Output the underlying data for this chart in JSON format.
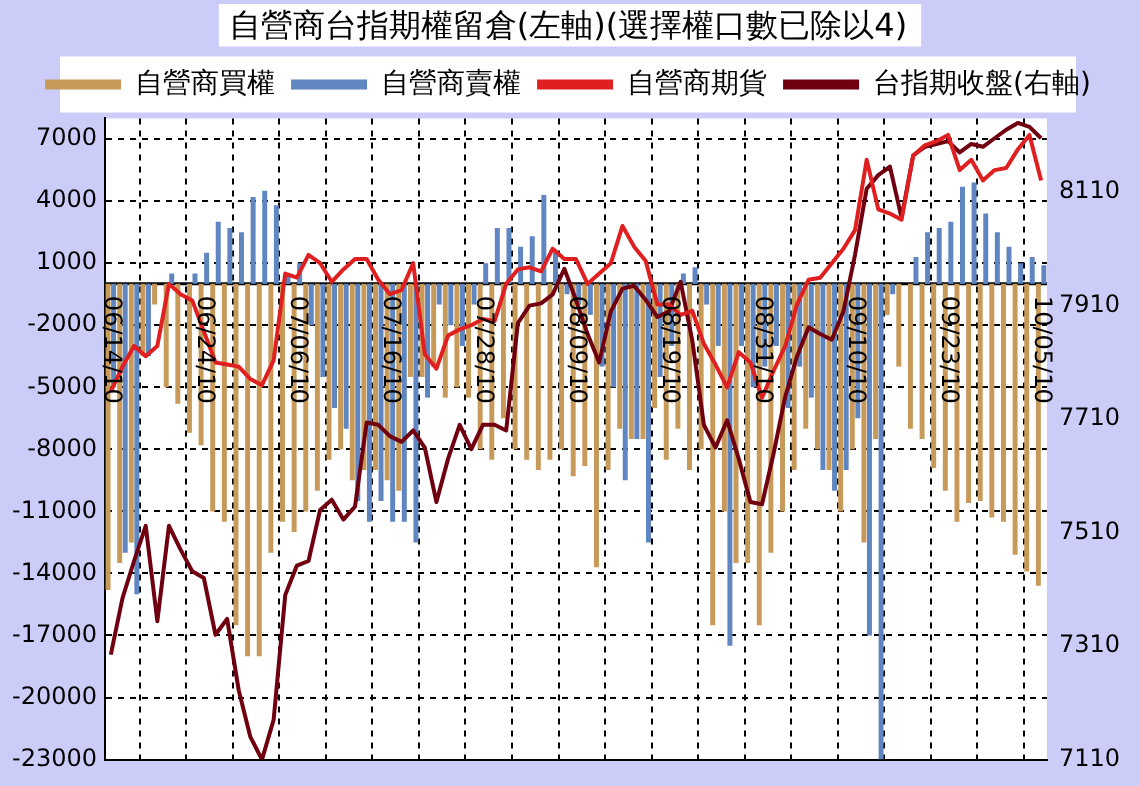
{
  "chart_data": {
    "type": "bar",
    "title": "自營商台指期權留倉(左軸)(選擇權口數已除以4)",
    "categories": [
      "06/14/10",
      null,
      null,
      null,
      null,
      null,
      null,
      null,
      "06/24/10",
      null,
      null,
      null,
      null,
      null,
      null,
      null,
      "07/06/10",
      null,
      null,
      null,
      null,
      null,
      null,
      null,
      "07/16/10",
      null,
      null,
      null,
      null,
      null,
      null,
      null,
      "07/28/10",
      null,
      null,
      null,
      null,
      null,
      null,
      null,
      "08/09/10",
      null,
      null,
      null,
      null,
      null,
      null,
      null,
      "08/19/10",
      null,
      null,
      null,
      null,
      null,
      null,
      null,
      "08/31/10",
      null,
      null,
      null,
      null,
      null,
      null,
      null,
      "09/10/10",
      null,
      null,
      null,
      null,
      null,
      null,
      null,
      "09/23/10",
      null,
      null,
      null,
      null,
      null,
      null,
      null,
      "10/05/10"
    ],
    "series": [
      {
        "name": "自營商買權",
        "color": "#c89a5a",
        "values": [
          -14800,
          -13500,
          -12500,
          -3500,
          -1000,
          -5000,
          -5800,
          -7200,
          -7800,
          -11000,
          -11500,
          -16500,
          -18000,
          -18000,
          -13000,
          -11500,
          -12000,
          -11000,
          -10000,
          -8500,
          -8000,
          -9500,
          -9000,
          -9000,
          -9500,
          -10000,
          -4500,
          -4500,
          -4000,
          -5500,
          -5000,
          -5500,
          -8000,
          -8500,
          -6500,
          -8000,
          -8500,
          -9000,
          -8500,
          -8000,
          -9300,
          -8800,
          -13700,
          -9000,
          -7000,
          -7500,
          -7500,
          -6000,
          -8500,
          -7000,
          -9000,
          -8000,
          -16500,
          -11000,
          -13500,
          -13500,
          -16500,
          -13000,
          -11000,
          -9000,
          -7000,
          -8000,
          -9000,
          -11000,
          -8000,
          -12500,
          -7500,
          -1500,
          -4000,
          -7000,
          -7500,
          -8900,
          -10000,
          -11500,
          -10600,
          -10500,
          -11300,
          -11500,
          -13100,
          -13900,
          -14600
        ]
      },
      {
        "name": "自營商賣權",
        "color": "#5f86c0",
        "values": [
          -5000,
          -13000,
          -15000,
          -3500,
          0,
          500,
          0,
          500,
          1500,
          3000,
          2700,
          2500,
          4200,
          4500,
          3800,
          500,
          1000,
          -2000,
          -4500,
          -6000,
          -7000,
          -10500,
          -11500,
          -10500,
          -11500,
          -11500,
          -12500,
          -5500,
          -1000,
          -2000,
          -3000,
          -1000,
          1000,
          2700,
          2700,
          1800,
          2300,
          4300,
          1500,
          -500,
          -1000,
          -1500,
          -4000,
          -5000,
          -9500,
          -7500,
          -12500,
          -4500,
          -3000,
          500,
          800,
          -1000,
          -3000,
          -17500,
          -3000,
          -5000,
          -4000,
          -3000,
          -6000,
          -4000,
          -5500,
          -9000,
          -10000,
          -9000,
          -6500,
          -17000,
          -23000,
          -500,
          0,
          1300,
          2500,
          2700,
          3000,
          4700,
          4900,
          3400,
          2500,
          1800,
          1000,
          1300,
          900
        ]
      },
      {
        "name": "自營商期貨",
        "type": "line",
        "color": "#e02020",
        "values": [
          -5200,
          -4000,
          -3000,
          -3500,
          -3000,
          0,
          -500,
          -800,
          -2300,
          -3800,
          -3900,
          -4000,
          -4600,
          -4900,
          -3700,
          500,
          300,
          1400,
          1000,
          100,
          700,
          1200,
          1200,
          200,
          -500,
          -300,
          1000,
          -3400,
          -4100,
          -2500,
          -2200,
          -2000,
          -1700,
          -1800,
          0,
          700,
          800,
          600,
          1700,
          1200,
          1200,
          0,
          500,
          1000,
          2800,
          1800,
          1100,
          -1000,
          -1000,
          -1500,
          -1300,
          -2900,
          -3900,
          -5000,
          -3300,
          -3800,
          -5500,
          -4200,
          -3000,
          -1000,
          200,
          300,
          1000,
          1700,
          2600,
          6000,
          3600,
          3400,
          3100,
          6200,
          6700,
          6900,
          7200,
          5500,
          6000,
          5000,
          5500,
          5600,
          6500,
          7200,
          5000
        ]
      },
      {
        "name": "台指期收盤(右軸)",
        "type": "line",
        "axis": "y2",
        "color": "#700010",
        "values": [
          7295,
          7394,
          7460,
          7522,
          7354,
          7522,
          7480,
          7442,
          7430,
          7330,
          7358,
          7232,
          7150,
          7110,
          7180,
          7400,
          7452,
          7460,
          7550,
          7568,
          7533,
          7556,
          7704,
          7700,
          7680,
          7670,
          7690,
          7660,
          7564,
          7640,
          7700,
          7657,
          7700,
          7700,
          7690,
          7879,
          7910,
          7914,
          7930,
          7975,
          7920,
          7860,
          7810,
          7900,
          7940,
          7945,
          7920,
          7890,
          7900,
          7952,
          7849,
          7700,
          7660,
          7708,
          7640,
          7564,
          7560,
          7650,
          7750,
          7820,
          7872,
          7860,
          7850,
          7900,
          8000,
          8116,
          8140,
          8155,
          8065,
          8175,
          8190,
          8195,
          8200,
          8180,
          8195,
          8190,
          8205,
          8220,
          8232,
          8225,
          8205
        ]
      }
    ],
    "ylim": [
      -23000,
      8000
    ],
    "yticks": [
      7000,
      4000,
      1000,
      -2000,
      -5000,
      -8000,
      -11000,
      -14000,
      -17000,
      -20000,
      -23000
    ],
    "y2lim": [
      7110,
      8240
    ],
    "y2ticks": [
      8110,
      7910,
      7710,
      7510,
      7310,
      7110
    ],
    "grid": true,
    "legend": "top",
    "marker": "none"
  }
}
